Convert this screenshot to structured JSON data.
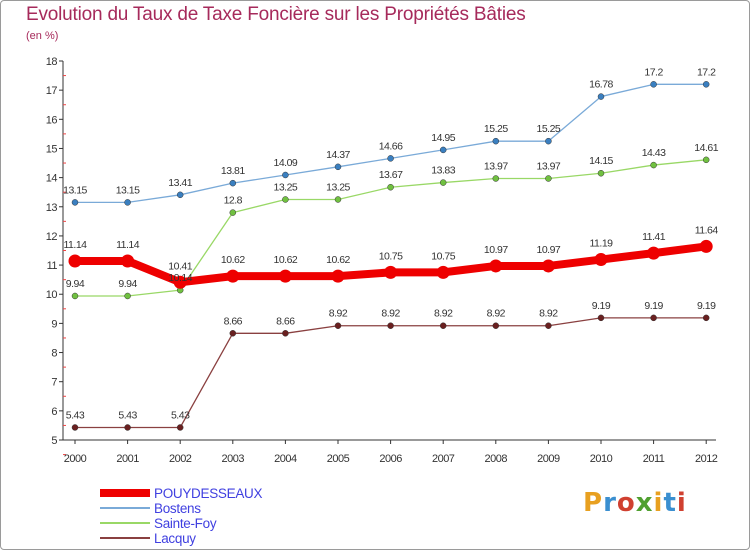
{
  "title": "Evolution du Taux de Taxe Foncière sur les Propriétés Bâties",
  "subtitle": "(en %)",
  "logo": {
    "letters": [
      "P",
      "r",
      "o",
      "x",
      "i",
      "t",
      "i"
    ],
    "colors": [
      "#e8a020",
      "#3a8fd0",
      "#d04030",
      "#50a030",
      "#e8a020",
      "#3a8fd0",
      "#d04030"
    ]
  },
  "chart_data": {
    "type": "line",
    "x": [
      "2000",
      "2001",
      "2002",
      "2003",
      "2004",
      "2005",
      "2006",
      "2007",
      "2008",
      "2009",
      "2010",
      "2011",
      "2012"
    ],
    "ylim": [
      5,
      18
    ],
    "yticks": [
      5,
      6,
      7,
      8,
      9,
      10,
      11,
      12,
      13,
      14,
      15,
      16,
      17,
      18
    ],
    "grid": false,
    "legend_position": "bottom-left",
    "series": [
      {
        "name": "Bostens",
        "color": "#7aaad8",
        "marker": "#3a7fc0",
        "width": 1.3,
        "values": [
          13.15,
          13.15,
          13.41,
          13.81,
          14.09,
          14.37,
          14.66,
          14.95,
          15.25,
          15.25,
          16.78,
          17.2,
          17.2
        ],
        "labels": [
          "13.15",
          "13.15",
          "13.41",
          "13.81",
          "14.09",
          "14.37",
          "14.66",
          "14.95",
          "15.25",
          "15.25",
          "16.78",
          "17.2",
          "17.2"
        ]
      },
      {
        "name": "Sainte-Foy",
        "color": "#99d866",
        "marker": "#70c040",
        "width": 1.3,
        "values": [
          9.94,
          9.94,
          10.14,
          12.8,
          13.25,
          13.25,
          13.67,
          13.83,
          13.97,
          13.97,
          14.15,
          14.43,
          14.61
        ],
        "labels": [
          "9.94",
          "9.94",
          "10.14",
          "12.8",
          "13.25",
          "13.25",
          "13.67",
          "13.83",
          "13.97",
          "13.97",
          "14.15",
          "14.43",
          "14.61"
        ]
      },
      {
        "name": "Lacquy",
        "color": "#8a4040",
        "marker": "#6a2020",
        "width": 1.3,
        "values": [
          5.43,
          5.43,
          5.43,
          8.66,
          8.66,
          8.92,
          8.92,
          8.92,
          8.92,
          8.92,
          9.19,
          9.19,
          9.19
        ],
        "labels": [
          "5.43",
          "5.43",
          "5.43",
          "8.66",
          "8.66",
          "8.92",
          "8.92",
          "8.92",
          "8.92",
          "8.92",
          "9.19",
          "9.19",
          "9.19"
        ]
      },
      {
        "name": "POUYDESSEAUX",
        "color": "#ee0000",
        "marker": "#ee0000",
        "width": 8,
        "values": [
          11.14,
          11.14,
          10.41,
          10.62,
          10.62,
          10.62,
          10.75,
          10.75,
          10.97,
          10.97,
          11.19,
          11.41,
          11.64
        ],
        "labels": [
          "11.14",
          "11.14",
          "10.41",
          "10.62",
          "10.62",
          "10.62",
          "10.75",
          "10.75",
          "10.97",
          "10.97",
          "11.19",
          "11.41",
          "11.64"
        ]
      }
    ],
    "legend": [
      {
        "name": "POUYDESSEAUX",
        "color": "#ee0000",
        "text_color": "#4040e0"
      },
      {
        "name": "Bostens",
        "color": "#7aaad8",
        "text_color": "#4040e0"
      },
      {
        "name": "Sainte-Foy",
        "color": "#99d866",
        "text_color": "#4040e0"
      },
      {
        "name": "Lacquy",
        "color": "#8a4040",
        "text_color": "#4040e0"
      }
    ]
  }
}
